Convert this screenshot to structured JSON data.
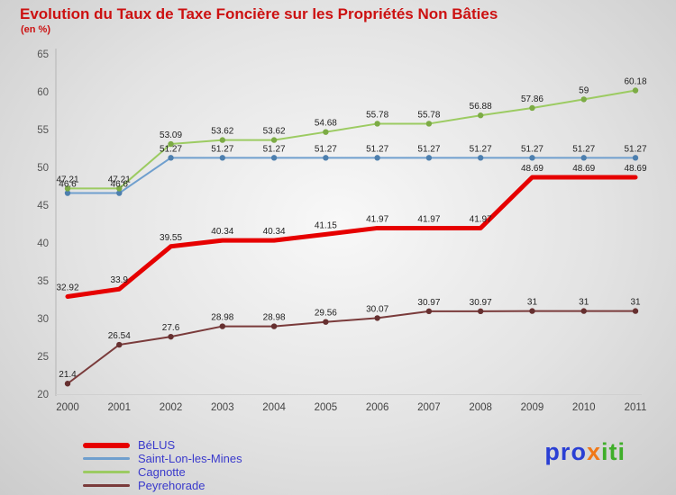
{
  "header": {
    "title": "Evolution du Taux de Taxe Foncière sur les Propriétés Non Bâties",
    "subtitle": "(en %)",
    "title_color": "#cc1111"
  },
  "chart_data": {
    "type": "line",
    "categories": [
      "2000",
      "2001",
      "2002",
      "2003",
      "2004",
      "2005",
      "2006",
      "2007",
      "2008",
      "2009",
      "2010",
      "2011"
    ],
    "ylim": [
      20,
      65
    ],
    "ytick_step": 5,
    "grid": false,
    "legend_position": "bottom-left",
    "xlabel": "",
    "ylabel": "",
    "series": [
      {
        "name": "BéLUS",
        "color": "#e60000",
        "line_width": 5,
        "markers": false,
        "marker_color": "#e60000",
        "values": [
          32.92,
          33.9,
          39.55,
          40.34,
          40.34,
          41.15,
          41.97,
          41.97,
          41.97,
          48.69,
          48.69,
          48.69
        ]
      },
      {
        "name": "Saint-Lon-les-Mines",
        "color": "#6f9fce",
        "line_width": 2,
        "markers": true,
        "marker_color": "#4d7fae",
        "values": [
          46.6,
          46.6,
          51.27,
          51.27,
          51.27,
          51.27,
          51.27,
          51.27,
          51.27,
          51.27,
          51.27,
          51.27
        ]
      },
      {
        "name": "Cagnotte",
        "color": "#9ccb62",
        "line_width": 2,
        "markers": true,
        "marker_color": "#7cab45",
        "values": [
          47.21,
          47.21,
          53.09,
          53.62,
          53.62,
          54.68,
          55.78,
          55.78,
          56.88,
          57.86,
          59,
          60.18
        ]
      },
      {
        "name": "Peyrehorade",
        "color": "#7a3b3b",
        "line_width": 2,
        "markers": true,
        "marker_color": "#663030",
        "values": [
          21.4,
          26.54,
          27.6,
          28.98,
          28.98,
          29.56,
          30.07,
          30.97,
          30.97,
          31,
          31,
          31
        ]
      }
    ],
    "label_color": "#222222",
    "axis_text_color": "#555555"
  },
  "legend": {
    "text_color": "#3a3acc"
  },
  "logo": {
    "letters": [
      {
        "ch": "p",
        "color": "#2a3fd4"
      },
      {
        "ch": "r",
        "color": "#2a3fd4"
      },
      {
        "ch": "o",
        "color": "#2a3fd4"
      },
      {
        "ch": "x",
        "color": "#f07818"
      },
      {
        "ch": "i",
        "color": "#3fae29"
      },
      {
        "ch": "t",
        "color": "#3fae29"
      },
      {
        "ch": "i",
        "color": "#3fae29"
      }
    ]
  }
}
